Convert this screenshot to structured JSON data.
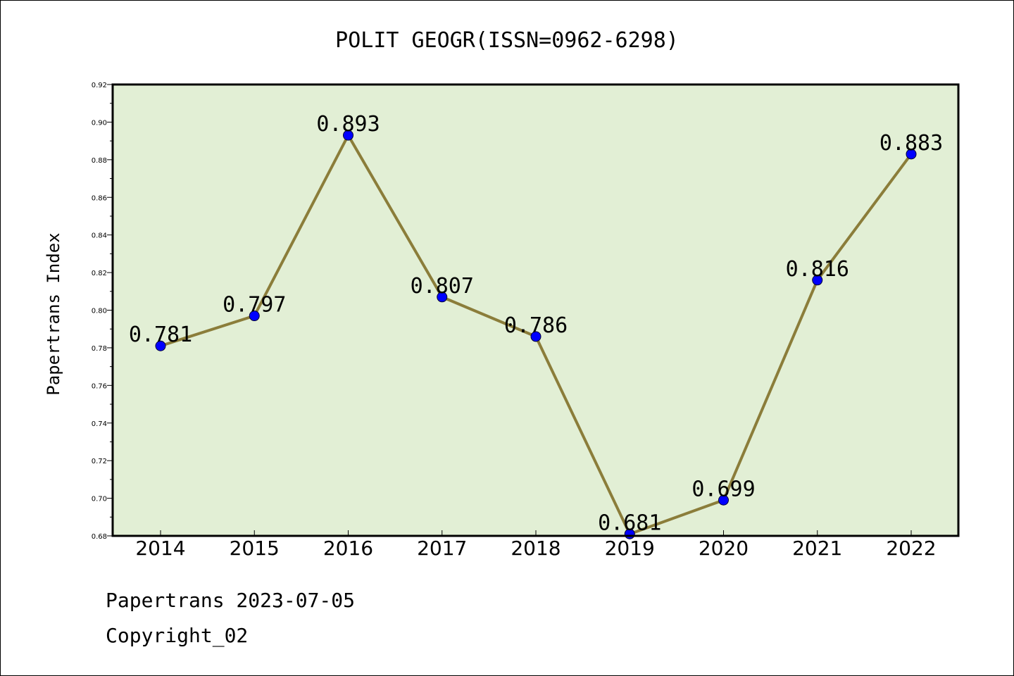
{
  "chart_data": {
    "type": "line",
    "title": "POLIT GEOGR(ISSN=0962-6298)",
    "ylabel": "Papertrans Index",
    "xlabel": "",
    "categories": [
      "2014",
      "2015",
      "2016",
      "2017",
      "2018",
      "2019",
      "2020",
      "2021",
      "2022"
    ],
    "values": [
      0.781,
      0.797,
      0.893,
      0.807,
      0.786,
      0.681,
      0.699,
      0.816,
      0.883
    ],
    "data_labels": [
      "0.781",
      "0.797",
      "0.893",
      "0.807",
      "0.786",
      "0.681",
      "0.699",
      "0.816",
      "0.883"
    ],
    "ylim": [
      0.68,
      0.92
    ],
    "yticks": [
      "0.68",
      "0.70",
      "0.72",
      "0.74",
      "0.76",
      "0.78",
      "0.80",
      "0.82",
      "0.84",
      "0.86",
      "0.88",
      "0.90",
      "0.92"
    ],
    "grid": false,
    "colors": {
      "plot_background": "#e2efd5",
      "line": "#8b7d3a",
      "marker": "#0000ff"
    }
  },
  "footer": {
    "line1": "Papertrans 2023-07-05",
    "line2": "Copyright_02"
  }
}
